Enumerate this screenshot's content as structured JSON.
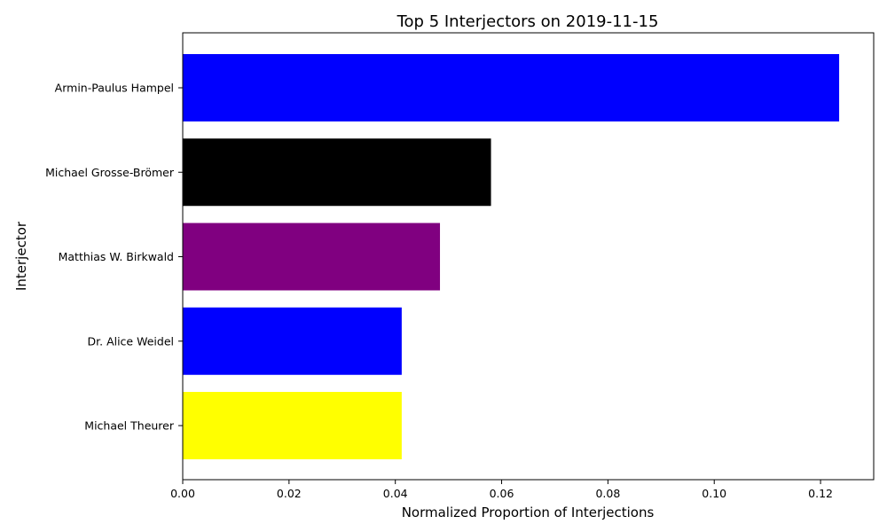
{
  "chart_data": {
    "type": "bar",
    "orientation": "horizontal",
    "title": "Top 5 Interjectors on 2019-11-15",
    "xlabel": "Normalized Proportion of Interjections",
    "ylabel": "Interjector",
    "categories": [
      "Armin-Paulus Hampel",
      "Michael Grosse-Brömer",
      "Matthias W. Birkwald",
      "Dr. Alice Weidel",
      "Michael Theurer"
    ],
    "values": [
      0.1235,
      0.058,
      0.0484,
      0.0412,
      0.0412
    ],
    "colors": [
      "#0000ff",
      "#000000",
      "#800080",
      "#0000ff",
      "#ffff00"
    ],
    "xlim": [
      0,
      0.13
    ],
    "xticks": [
      0.0,
      0.02,
      0.04,
      0.06,
      0.08,
      0.1,
      0.12
    ],
    "xtick_labels": [
      "0.00",
      "0.02",
      "0.04",
      "0.06",
      "0.08",
      "0.10",
      "0.12"
    ],
    "grid": false,
    "legend": "none"
  }
}
